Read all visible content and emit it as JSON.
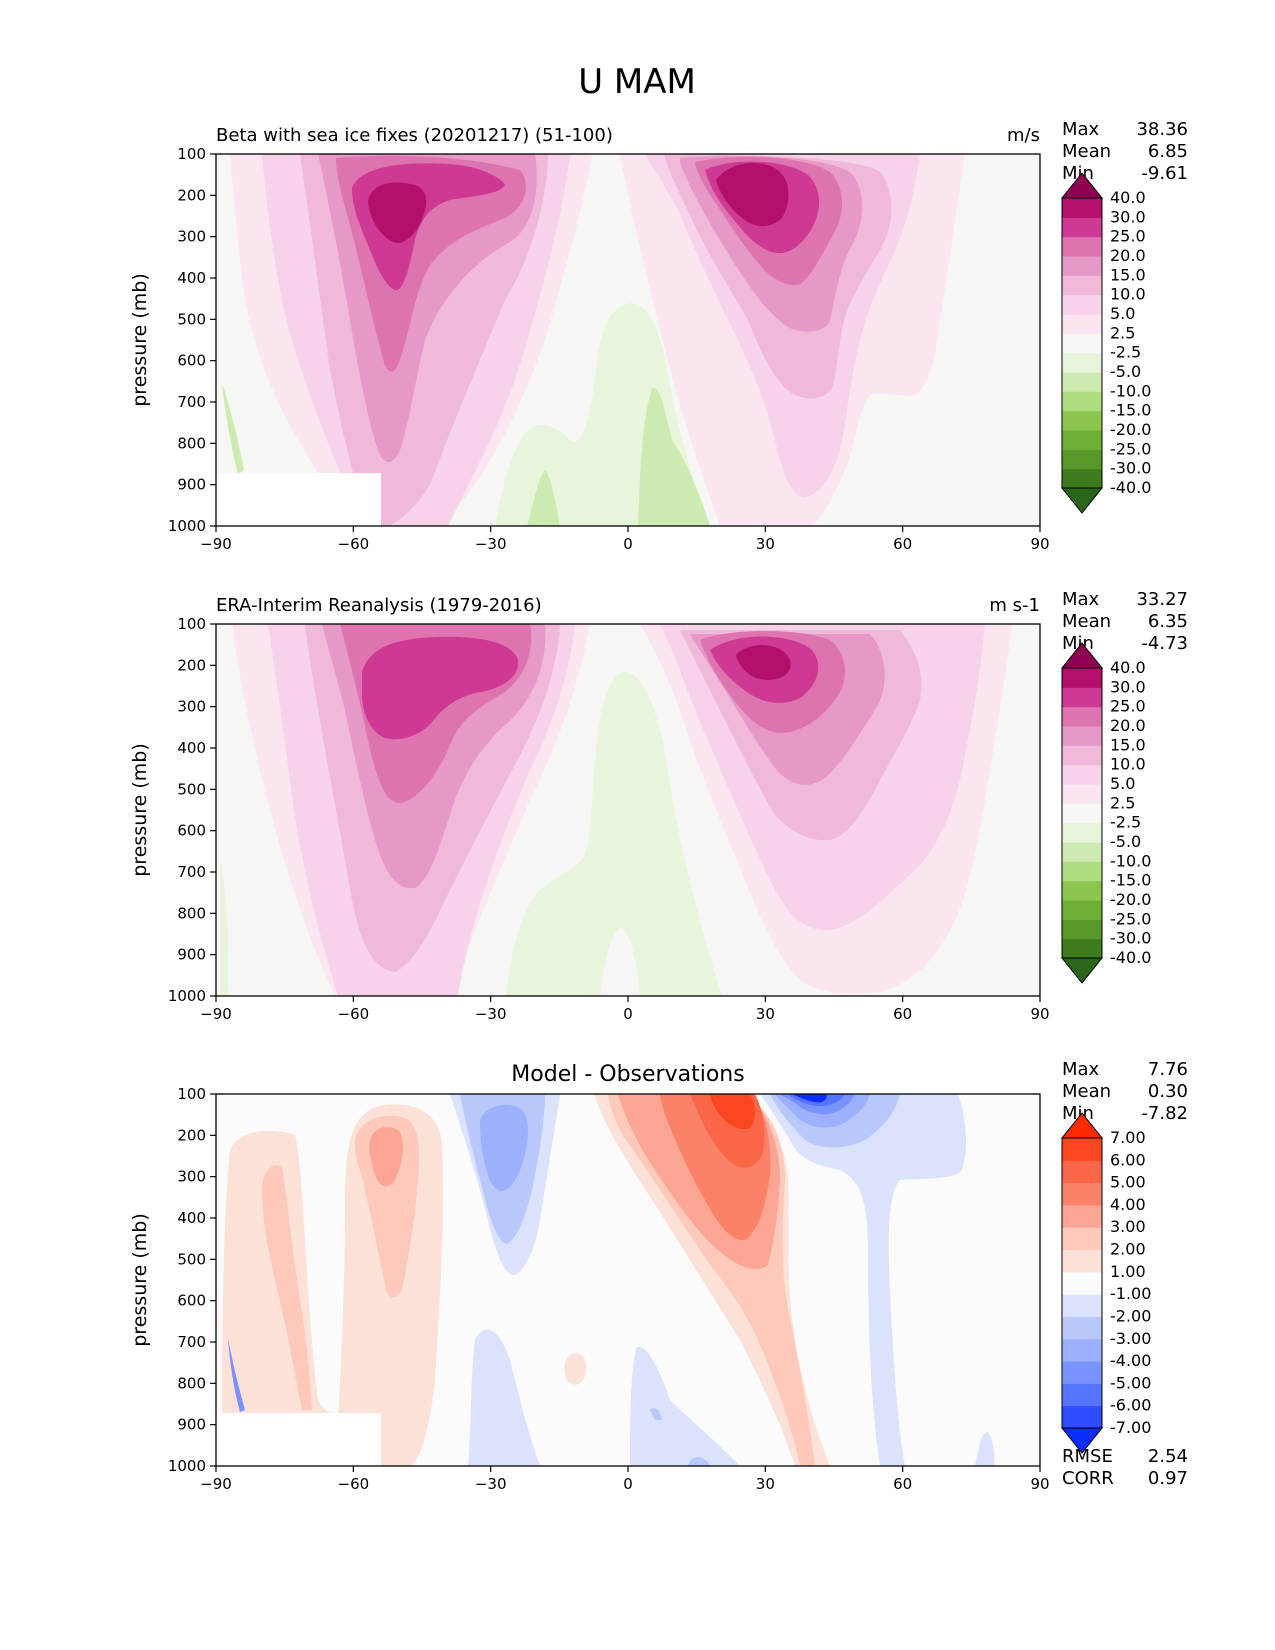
{
  "figure": {
    "title": "U MAM"
  },
  "chart_data": [
    {
      "type": "contour",
      "title": "Beta with sea ice fixes (20201217) (51-100)",
      "units": "m/s",
      "ylabel": "pressure (mb)",
      "xlim": [
        -90,
        90
      ],
      "ylim": [
        1000,
        100
      ],
      "xticks": [
        -90,
        -60,
        -30,
        0,
        30,
        60,
        90
      ],
      "yticks": [
        100,
        200,
        300,
        400,
        500,
        600,
        700,
        800,
        900,
        1000
      ],
      "xtick_labels": [
        "−90",
        "−60",
        "−30",
        "0",
        "30",
        "60",
        "90"
      ],
      "stats": {
        "max_label": "Max",
        "max": "38.36",
        "mean_label": "Mean",
        "mean": "6.85",
        "min_label": "Min",
        "min": "-9.61"
      },
      "colorbar": {
        "levels": [
          "-40.0",
          "-30.0",
          "-25.0",
          "-20.0",
          "-15.0",
          "-10.0",
          "-5.0",
          "-2.5",
          "2.5",
          "5.0",
          "10.0",
          "15.0",
          "20.0",
          "25.0",
          "30.0",
          "40.0"
        ],
        "colors": [
          "#2b6519",
          "#3e7b1e",
          "#56982a",
          "#6eb036",
          "#8cc650",
          "#aedc7e",
          "#cdebb0",
          "#e8f5dc",
          "#f6f6f4",
          "#fbe5f1",
          "#f6d3e8",
          "#f0b8d9",
          "#e698c6",
          "#dd74b0",
          "#cd3993",
          "#b2106a",
          "#8e0152"
        ]
      },
      "features": [
        {
          "name": "southern jet",
          "lat": -50,
          "p": 250,
          "value": 35
        },
        {
          "name": "northern jet",
          "lat": 28,
          "p": 210,
          "value": 38
        },
        {
          "name": "tropical easterlies",
          "lat": 8,
          "p": 900,
          "value": -8
        }
      ]
    },
    {
      "type": "contour",
      "title": "ERA-Interim Reanalysis (1979-2016)",
      "units": "m s-1",
      "ylabel": "pressure (mb)",
      "xlim": [
        -90,
        90
      ],
      "ylim": [
        1000,
        100
      ],
      "xticks": [
        -90,
        -60,
        -30,
        0,
        30,
        60,
        90
      ],
      "yticks": [
        100,
        200,
        300,
        400,
        500,
        600,
        700,
        800,
        900,
        1000
      ],
      "xtick_labels": [
        "−90",
        "−60",
        "−30",
        "0",
        "30",
        "60",
        "90"
      ],
      "stats": {
        "max_label": "Max",
        "max": "33.27",
        "mean_label": "Mean",
        "mean": "6.35",
        "min_label": "Min",
        "min": "-4.73"
      },
      "colorbar": {
        "levels": [
          "-40.0",
          "-30.0",
          "-25.0",
          "-20.0",
          "-15.0",
          "-10.0",
          "-5.0",
          "-2.5",
          "2.5",
          "5.0",
          "10.0",
          "15.0",
          "20.0",
          "25.0",
          "30.0",
          "40.0"
        ],
        "colors": [
          "#2b6519",
          "#3e7b1e",
          "#56982a",
          "#6eb036",
          "#8cc650",
          "#aedc7e",
          "#cdebb0",
          "#e8f5dc",
          "#f6f6f4",
          "#fbe5f1",
          "#f6d3e8",
          "#f0b8d9",
          "#e698c6",
          "#dd74b0",
          "#cd3993",
          "#b2106a",
          "#8e0152"
        ]
      },
      "features": [
        {
          "name": "southern jet",
          "lat": -45,
          "p": 230,
          "value": 30
        },
        {
          "name": "northern jet",
          "lat": 30,
          "p": 190,
          "value": 33
        },
        {
          "name": "tropical easterlies",
          "lat": -5,
          "p": 850,
          "value": -4
        }
      ]
    },
    {
      "type": "contour",
      "title": "Model - Observations",
      "units": "",
      "ylabel": "pressure (mb)",
      "xlim": [
        -90,
        90
      ],
      "ylim": [
        1000,
        100
      ],
      "xticks": [
        -90,
        -60,
        -30,
        0,
        30,
        60,
        90
      ],
      "yticks": [
        100,
        200,
        300,
        400,
        500,
        600,
        700,
        800,
        900,
        1000
      ],
      "xtick_labels": [
        "−90",
        "−60",
        "−30",
        "0",
        "30",
        "60",
        "90"
      ],
      "stats": {
        "max_label": "Max",
        "max": "7.76",
        "mean_label": "Mean",
        "mean": "0.30",
        "min_label": "Min",
        "min": "-7.82"
      },
      "metrics": {
        "rmse_label": "RMSE",
        "rmse": "2.54",
        "corr_label": "CORR",
        "corr": "0.97"
      },
      "colorbar": {
        "levels": [
          "-7.00",
          "-6.00",
          "-5.00",
          "-4.00",
          "-3.00",
          "-2.00",
          "-1.00",
          "1.00",
          "2.00",
          "3.00",
          "4.00",
          "5.00",
          "6.00",
          "7.00"
        ],
        "colors": [
          "#0a2cff",
          "#2f4dff",
          "#5574ff",
          "#7a92ff",
          "#9cb0fb",
          "#b9c8fa",
          "#dbe2fb",
          "#fbfbfb",
          "#fce1d8",
          "#fcc9bb",
          "#fba694",
          "#f98268",
          "#fa6748",
          "#fb4622",
          "#fe2a00"
        ]
      },
      "features": [
        {
          "name": "northern jet excess",
          "lat": 20,
          "p": 130,
          "value": 7.76
        },
        {
          "name": "poleward jet deficit",
          "lat": 38,
          "p": 110,
          "value": -7.82
        },
        {
          "name": "southern high-latitude excess",
          "lat": -52,
          "p": 250,
          "value": 4
        },
        {
          "name": "southern subtropical deficit",
          "lat": -30,
          "p": 250,
          "value": -4
        }
      ]
    }
  ]
}
